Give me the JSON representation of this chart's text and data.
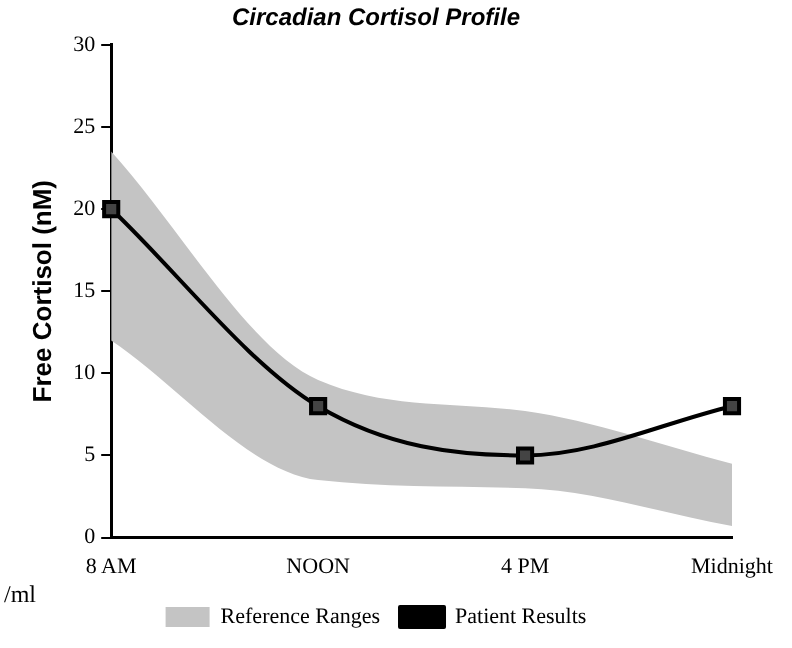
{
  "chart_data": {
    "type": "line",
    "title": "Circadian Cortisol Profile",
    "ylabel": "Free Cortisol (nM)",
    "categories": [
      "8 AM",
      "NOON",
      "4 PM",
      "Midnight"
    ],
    "series": [
      {
        "name": "Reference Ranges",
        "type": "area",
        "color": "#c4c4c4",
        "values": [
          null,
          null,
          null,
          null
        ],
        "lower": [
          12,
          3.5,
          3,
          0.7
        ],
        "upper": [
          23.5,
          9.6,
          7.7,
          4.5
        ]
      },
      {
        "name": "Patient Results",
        "type": "line",
        "color": "#000000",
        "values": [
          20,
          8,
          5,
          8
        ]
      }
    ],
    "ylim": [
      0,
      30
    ],
    "yticks": [
      0,
      5,
      10,
      15,
      20,
      25,
      30
    ],
    "grid": false,
    "legend": "bottom",
    "marker": "square",
    "line_style": "solid",
    "annotations": [
      "/ml"
    ]
  }
}
